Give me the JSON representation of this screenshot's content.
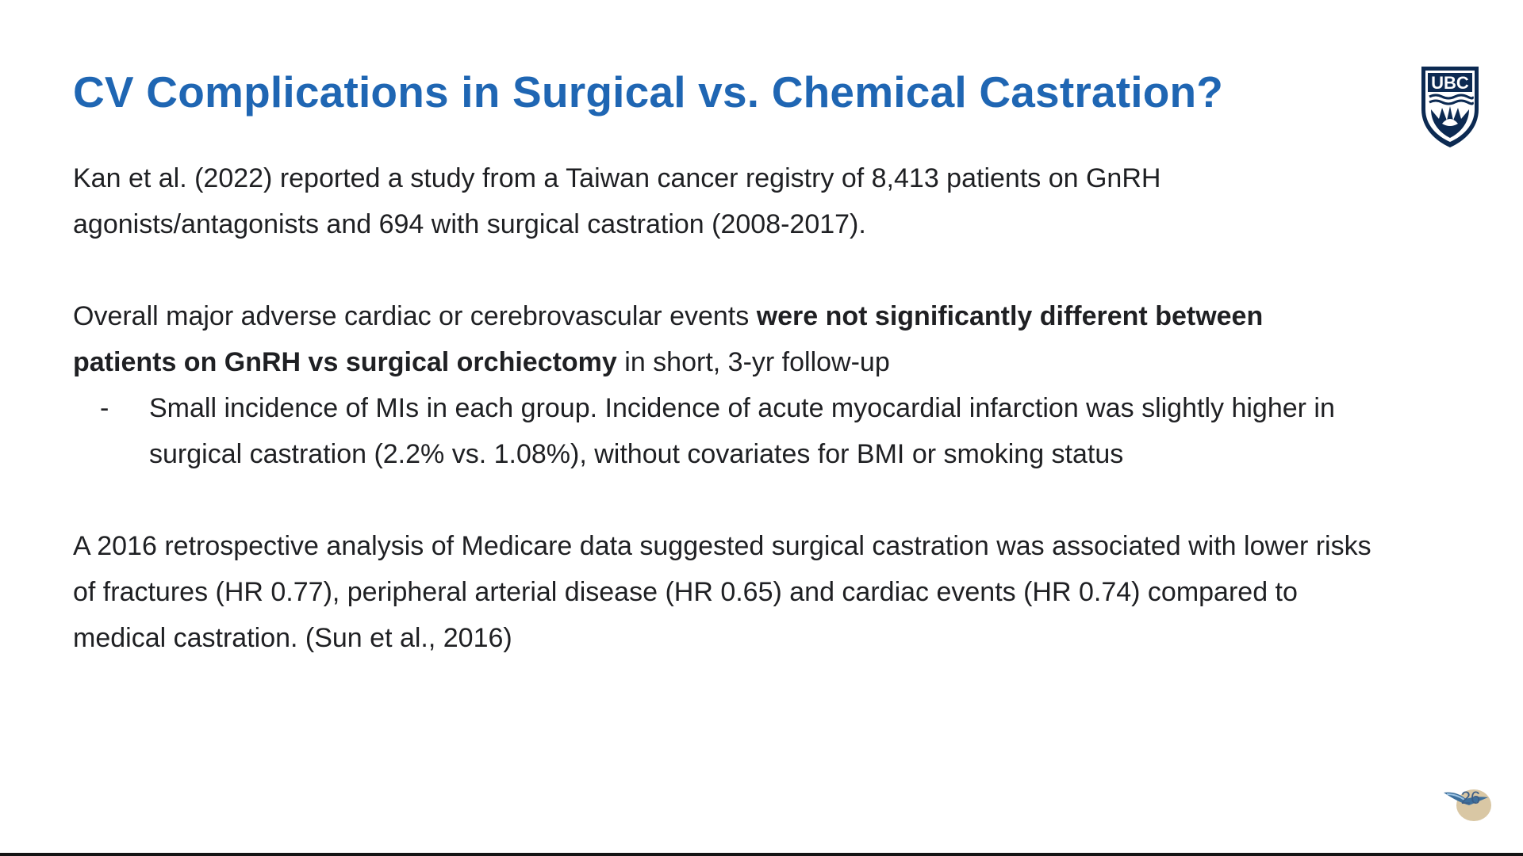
{
  "slide": {
    "title": "CV Complications in Surgical vs. Chemical Castration?",
    "logo_text": "UBC",
    "page_number": "26",
    "paragraphs": {
      "p1": "Kan et al. (2022) reported a study from a Taiwan cancer registry of 8,413 patients on GnRH agonists/antagonists and 694 with surgical castration (2008-2017).",
      "p2_start": "Overall major adverse cardiac or cerebrovascular events ",
      "p2_bold": "were not significantly different between patients on GnRH vs surgical orchiectomy",
      "p2_end": " in short, 3-yr follow-up",
      "bullet_dash": "-",
      "bullet1": "Small incidence of MIs in each group. Incidence of acute myocardial infarction was slightly higher in surgical castration (2.2% vs. 1.08%), without covariates for BMI or smoking status",
      "p3": "A 2016 retrospective analysis of Medicare data suggested surgical castration was associated with lower risks of fractures (HR 0.77), peripheral arterial disease (HR 0.65) and cardiac events (HR 0.74) compared to medical castration. (Sun et al., 2016)"
    },
    "colors": {
      "title": "#1f66b3",
      "text": "#1f2023",
      "logo": "#0c2a52"
    },
    "icons": {
      "logo": "ubc-crest-icon",
      "page_badge": "bird-badge-icon"
    }
  }
}
